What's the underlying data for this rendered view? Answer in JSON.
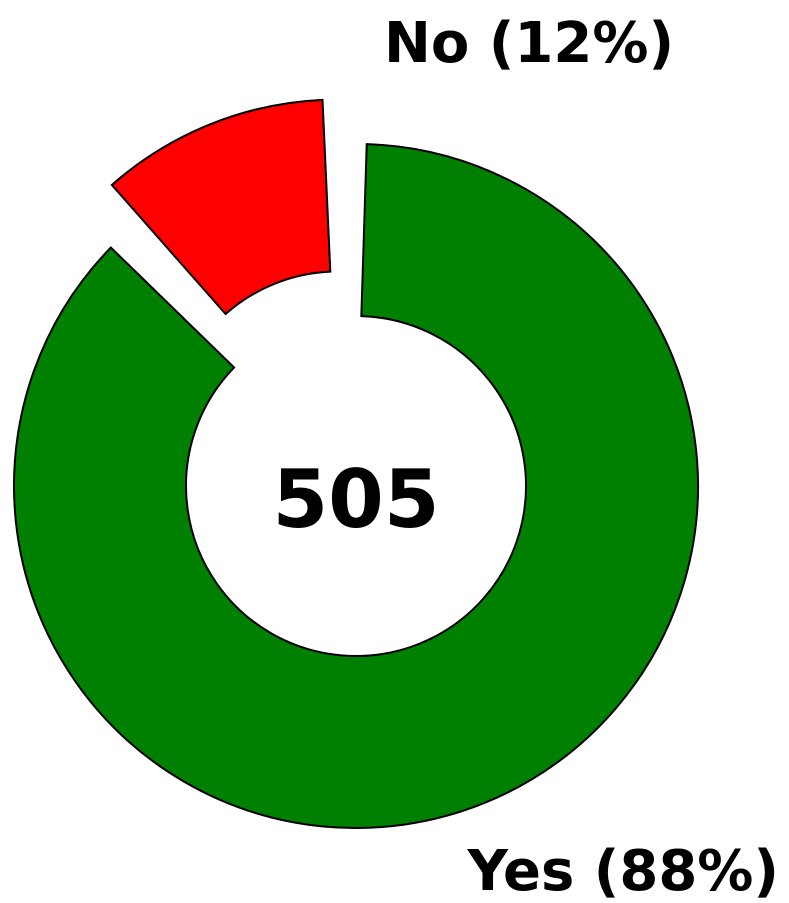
{
  "chart_data": {
    "type": "pie",
    "style": "donut",
    "title": "",
    "center_label": "505",
    "categories": [
      "Yes",
      "No"
    ],
    "values": [
      88,
      12
    ],
    "labels": [
      "Yes (88%)",
      "No (12%)"
    ],
    "colors": [
      "#008000",
      "#ff0000"
    ],
    "exploded": [
      "No"
    ],
    "outline_color": "#000000",
    "legend": "none"
  }
}
